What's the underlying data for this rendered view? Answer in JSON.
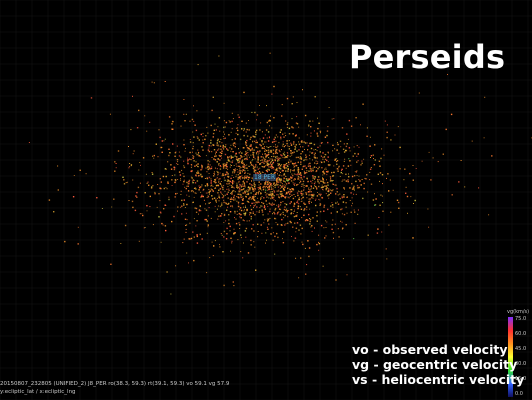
{
  "chart_data": {
    "type": "scatter",
    "title": "Perseids",
    "center_label": "18 PER",
    "legend": [
      "vo - observed velocity",
      "vg - geocentric velocity",
      "vs - heliocentric velocity"
    ],
    "status_line_1": "20150807_232805 (UNIFIED_2) J8_PER ro(38.3, 59.3) rt(39.1, 59.3) vo 59.1 vg 57.9",
    "status_line_2": "y:ecliptic_lat / x:ecliptic_lng",
    "colorbar": {
      "label": "vg(km/s)",
      "ticks": [
        "75.0",
        "60.0",
        "45.0",
        "30.0",
        "15.0",
        "0.0"
      ],
      "colors": [
        "#8030ff",
        "#ff3030",
        "#ff9020",
        "#ffff30",
        "#30e030",
        "#3060ff",
        "#101060"
      ]
    },
    "grid": true,
    "background": "#000000",
    "radiant": {
      "x": 0,
      "y": 0
    },
    "spread": {
      "x": 48,
      "y": 24
    },
    "point_count": 2600,
    "vg_mean": 58,
    "vg_sd": 3
  }
}
